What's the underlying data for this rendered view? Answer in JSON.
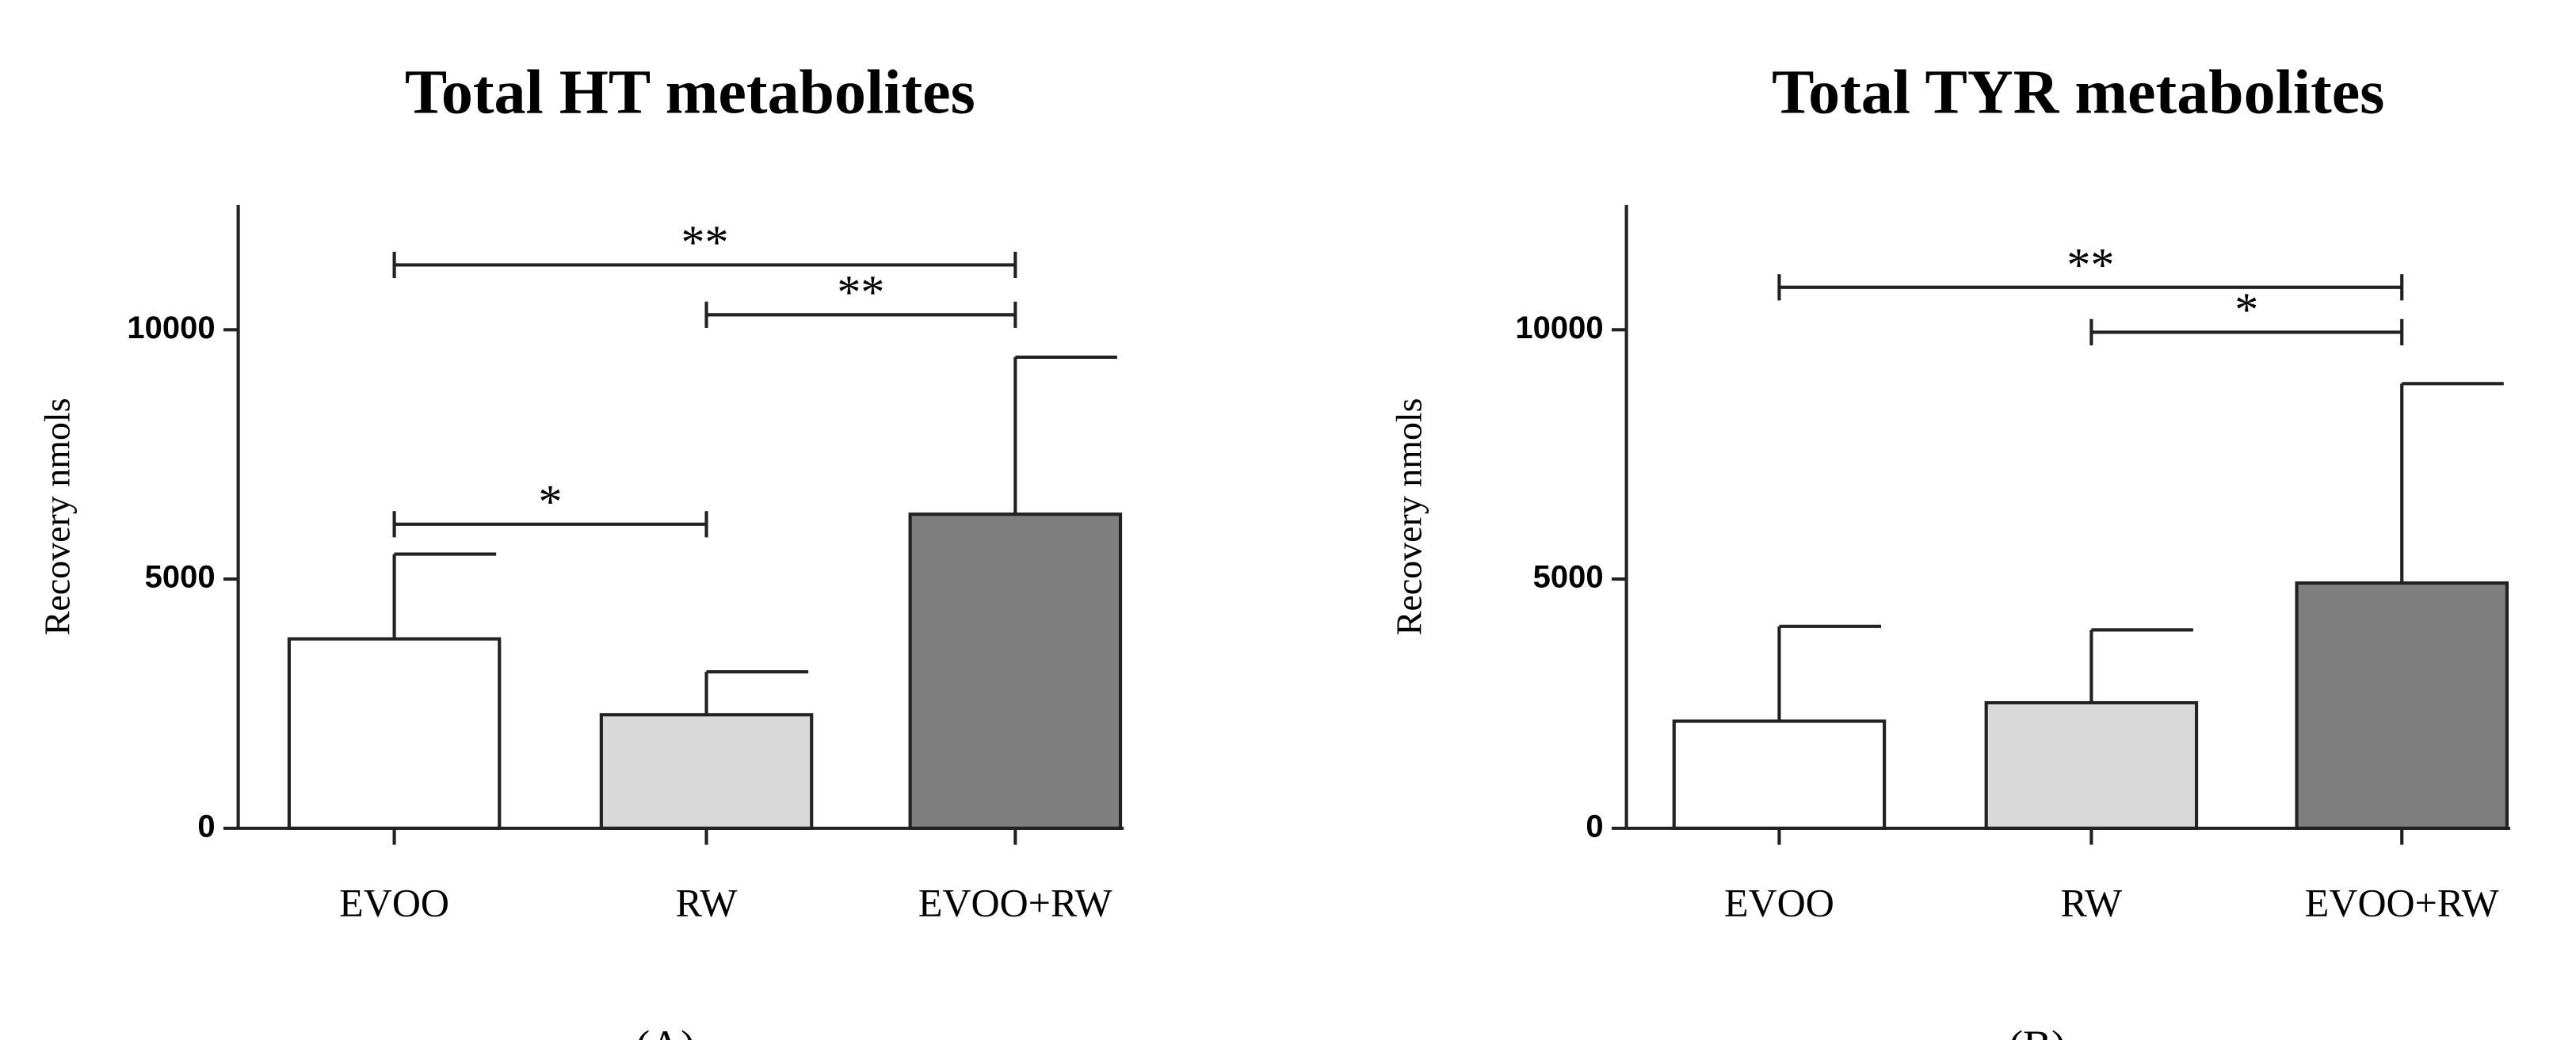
{
  "chart_data": [
    {
      "type": "bar",
      "title": "Total HT metabolites",
      "panel_label": "(A)",
      "xlabel": "",
      "ylabel": "Recovery nmols",
      "ylim": [
        0,
        12500
      ],
      "yticks": [
        0,
        5000,
        10000
      ],
      "ytick_labels": [
        "0",
        "5000",
        "10000"
      ],
      "categories": [
        "EVOO",
        "RW",
        "EVOO+RW"
      ],
      "values": [
        3800,
        2280,
        6300
      ],
      "error_upper": [
        5500,
        3140,
        9450
      ],
      "bar_colors": [
        "#ffffff",
        "#d9d9d9",
        "#7f7f7f"
      ],
      "significance": [
        {
          "from": 0,
          "to": 2,
          "label": "**",
          "y": 11300
        },
        {
          "from": 1,
          "to": 2,
          "label": "**",
          "y": 10300
        },
        {
          "from": 0,
          "to": 1,
          "label": "*",
          "y": 6100
        }
      ]
    },
    {
      "type": "bar",
      "title": "Total TYR metabolites",
      "panel_label": "(B)",
      "xlabel": "",
      "ylabel": "Recovery nmols",
      "ylim": [
        0,
        12500
      ],
      "yticks": [
        0,
        5000,
        10000
      ],
      "ytick_labels": [
        "0",
        "5000",
        "10000"
      ],
      "categories": [
        "EVOO",
        "RW",
        "EVOO+RW"
      ],
      "values": [
        2150,
        2520,
        4920
      ],
      "error_upper": [
        4050,
        3980,
        8920
      ],
      "bar_colors": [
        "#ffffff",
        "#d9d9d9",
        "#7f7f7f"
      ],
      "significance": [
        {
          "from": 0,
          "to": 2,
          "label": "**",
          "y": 10850
        },
        {
          "from": 1,
          "to": 2,
          "label": "*",
          "y": 9950
        }
      ]
    }
  ]
}
